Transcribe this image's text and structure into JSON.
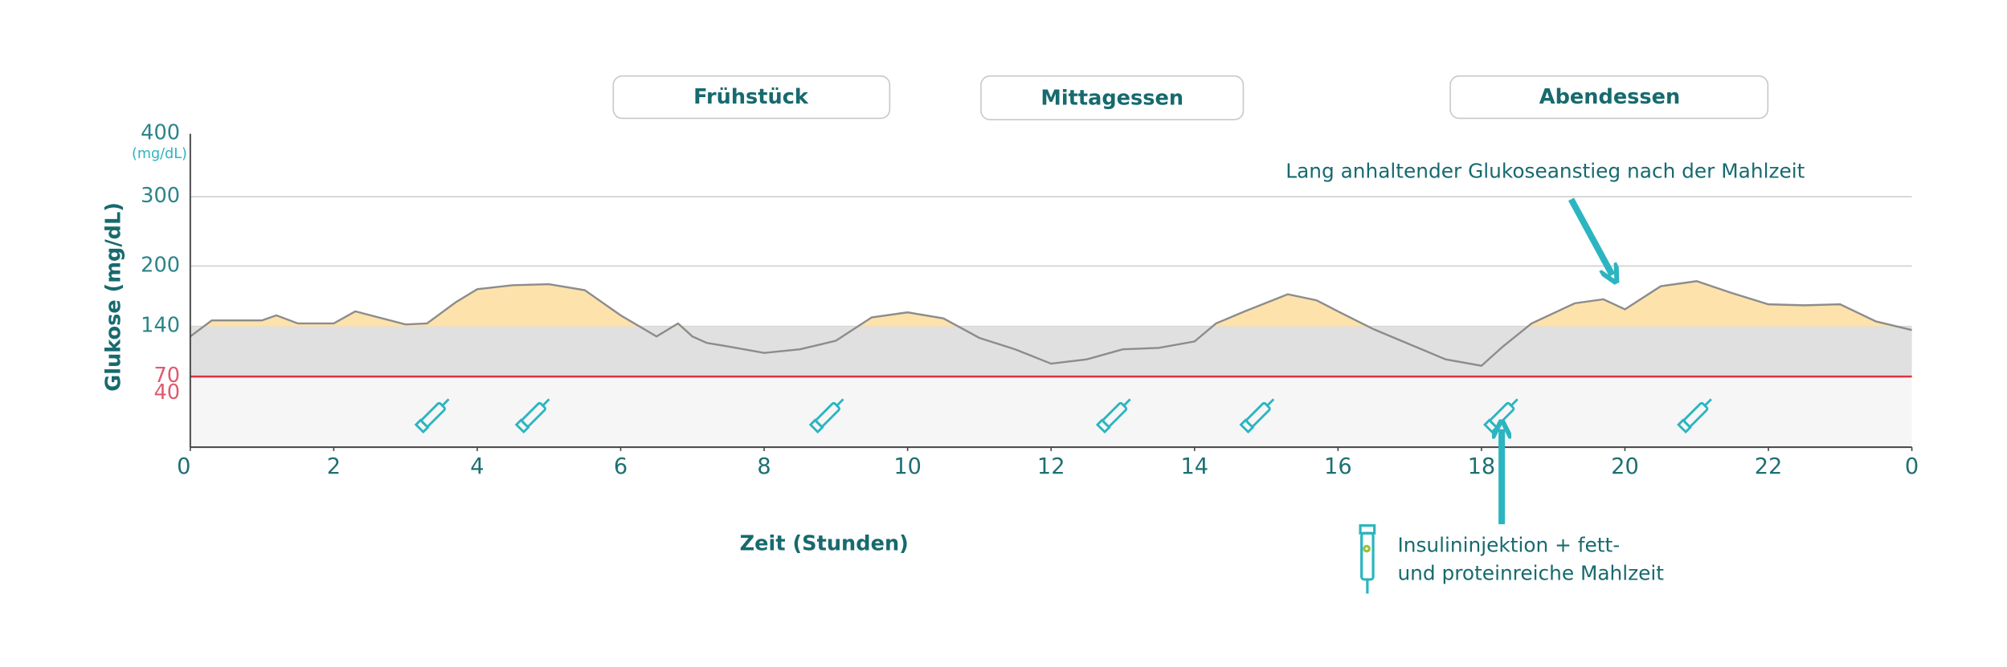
{
  "chart_data": {
    "type": "line",
    "y_axis_label": "Glukose (mg/dL)",
    "x_axis_label": "Zeit (Stunden)",
    "y_unit": "(mg/dL)",
    "meals": [
      "Frühstück",
      "Mittagessen",
      "Abendessen"
    ],
    "annotation": "Lang anhaltender Glukoseanstieg nach der Mahlzeit",
    "legend": [
      "Insulininjektion + fett-",
      "und proteinreiche Mahlzeit"
    ],
    "x": [
      0,
      0.3,
      1,
      1.2,
      1.5,
      2,
      2.3,
      3,
      3.3,
      3.7,
      4,
      4.5,
      5,
      5.5,
      6,
      6.5,
      6.8,
      7,
      7.2,
      7.5,
      8,
      8.5,
      9,
      9.5,
      10,
      10.5,
      11,
      11.5,
      12,
      12.5,
      13,
      13.5,
      14,
      14.3,
      14.7,
      15.3,
      15.7,
      16,
      16.5,
      17,
      17.5,
      18,
      18.3,
      18.7,
      19.3,
      19.7,
      20,
      20.5,
      21,
      21.5,
      22,
      22.5,
      23,
      23.5,
      24
    ],
    "values": [
      126,
      146,
      146,
      151,
      143,
      143,
      155,
      142,
      143,
      164,
      177,
      181,
      182,
      176,
      151,
      126,
      143,
      126,
      117,
      112,
      103,
      108,
      120,
      149,
      154,
      148,
      124,
      108,
      88,
      94,
      108,
      110,
      119,
      143,
      155,
      172,
      166,
      155,
      136,
      115,
      94,
      85,
      112,
      143,
      163,
      167,
      157,
      180,
      185,
      173,
      162,
      161,
      162,
      145,
      135
    ],
    "color": "#8c8c8c",
    "injections": [
      3.4,
      4.8,
      8.9,
      12.9,
      14.9,
      18.3,
      21
    ],
    "target_range": [
      70,
      140
    ],
    "xlim": [
      0,
      24
    ],
    "xticks": [
      0,
      2,
      4,
      6,
      8,
      10,
      12,
      14,
      16,
      18,
      20,
      22,
      {
        "value": 24,
        "label": "0"
      }
    ],
    "ylim": [
      0,
      400
    ],
    "yticks": [
      400,
      300,
      200,
      140,
      70,
      40
    ],
    "grid": true
  }
}
